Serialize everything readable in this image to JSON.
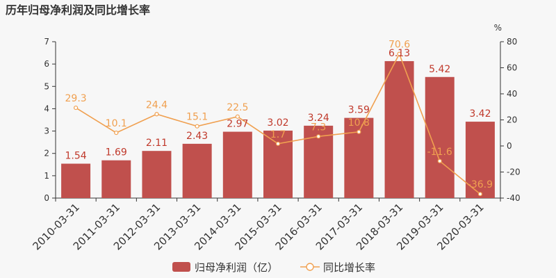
{
  "chart_data": {
    "type": "bar",
    "title": "历年归母净利润及同比增长率",
    "categories": [
      "2010-03-31",
      "2011-03-31",
      "2012-03-31",
      "2013-03-31",
      "2014-03-31",
      "2015-03-31",
      "2016-03-31",
      "2017-03-31",
      "2018-03-31",
      "2019-03-31",
      "2020-03-31"
    ],
    "series": [
      {
        "name": "归母净利润（亿）",
        "type": "bar",
        "axis": "left",
        "values": [
          1.54,
          1.69,
          2.11,
          2.43,
          2.97,
          3.02,
          3.24,
          3.59,
          6.13,
          5.42,
          3.42
        ],
        "labels": [
          "1.54",
          "1.69",
          "2.11",
          "2.43",
          "2.97",
          "3.02",
          "3.24",
          "3.59",
          "6.13",
          "5.42",
          "3.42"
        ],
        "color": "#c0504d"
      },
      {
        "name": "同比增长率",
        "type": "line",
        "axis": "right",
        "values": [
          29.3,
          10.1,
          24.4,
          15.1,
          22.5,
          1.7,
          7.3,
          10.8,
          70.6,
          -11.6,
          -36.9
        ],
        "labels": [
          "29.3",
          "10.1",
          "24.4",
          "15.1",
          "22.5",
          "1.7",
          "7.3",
          "10.8",
          "70.6",
          "-11.6",
          "-36.9"
        ],
        "color": "#f0a050"
      }
    ],
    "y_left": {
      "min": 0,
      "max": 7,
      "ticks": [
        "0",
        "1",
        "2",
        "3",
        "4",
        "5",
        "6",
        "7"
      ]
    },
    "y_right": {
      "min": -40,
      "max": 80,
      "unit": "%",
      "ticks": [
        "-40",
        "-20",
        "0",
        "20",
        "40",
        "60",
        "80"
      ]
    },
    "grid": false,
    "legend": "bottom"
  }
}
